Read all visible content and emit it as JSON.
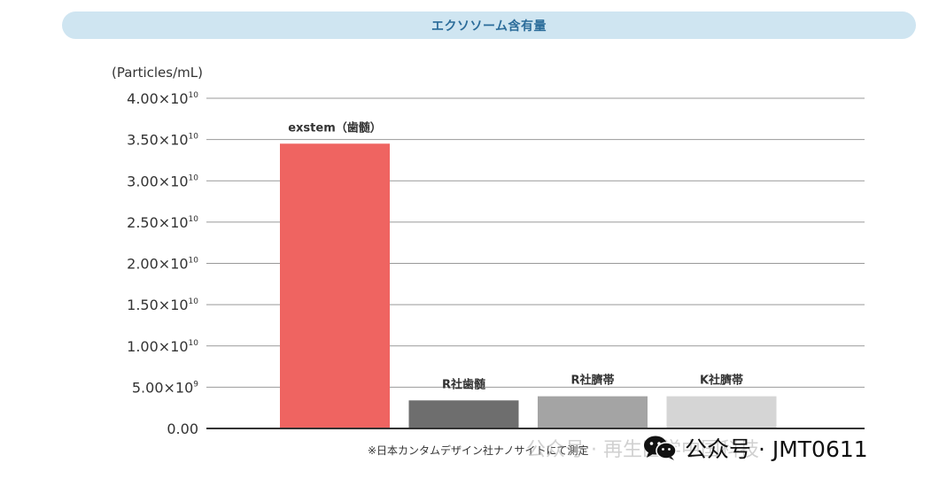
{
  "title": "エクソソーム含有量",
  "unit": "(Particles/mL)",
  "note": "※日本カンタムデザイン社ナノサイトにて測定",
  "watermark": {
    "ghost_text": "公众号 · 再生医学中国科技",
    "text": "公众号 · JMT0611",
    "icon": "wechat-icon"
  },
  "colors": {
    "banner_bg": "#cfe5f1",
    "title": "#2b6c9a",
    "grid": "#999999"
  },
  "chart_data": {
    "type": "bar",
    "categories": [
      "exstem（歯髄）",
      "R社歯髄",
      "R社臍帯",
      "K社臍帯"
    ],
    "values": [
      34500000000,
      3400000000,
      3900000000,
      3900000000
    ],
    "colors": [
      "#ef6461",
      "#6e6e6e",
      "#a4a4a4",
      "#d5d5d5"
    ],
    "ylim": [
      0,
      40000000000
    ],
    "yticks": [
      {
        "value": 0,
        "mantissa": "0.00",
        "exp": ""
      },
      {
        "value": 5000000000,
        "mantissa": "5.00×10",
        "exp": "9"
      },
      {
        "value": 10000000000,
        "mantissa": "1.00×10",
        "exp": "10"
      },
      {
        "value": 15000000000,
        "mantissa": "1.50×10",
        "exp": "10"
      },
      {
        "value": 20000000000,
        "mantissa": "2.00×10",
        "exp": "10"
      },
      {
        "value": 25000000000,
        "mantissa": "2.50×10",
        "exp": "10"
      },
      {
        "value": 30000000000,
        "mantissa": "3.00×10",
        "exp": "10"
      },
      {
        "value": 35000000000,
        "mantissa": "3.50×10",
        "exp": "10"
      },
      {
        "value": 40000000000,
        "mantissa": "4.00×10",
        "exp": "10"
      }
    ],
    "grid": true,
    "ylabel": "(Particles/mL)",
    "title": "エクソソーム含有量"
  }
}
